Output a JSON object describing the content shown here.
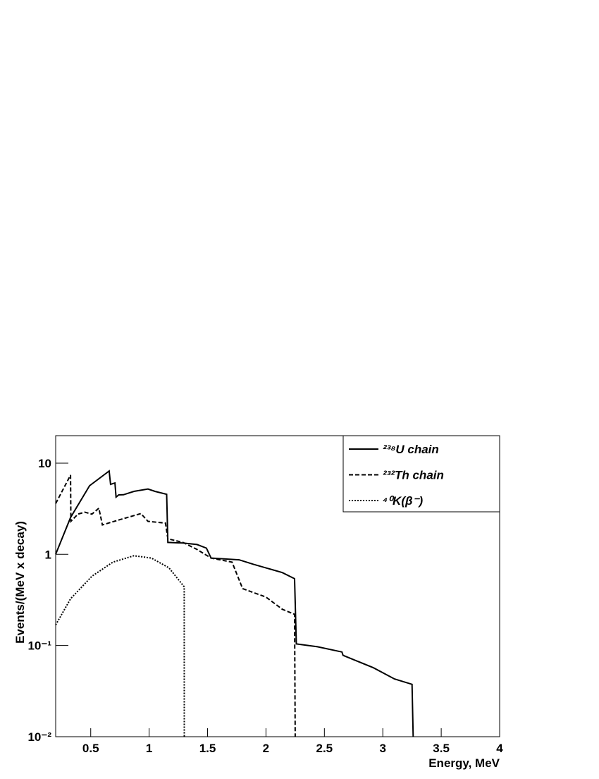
{
  "chart_data": {
    "type": "line",
    "xlabel": "Energy, MeV",
    "ylabel": "Events/(MeV x decay)",
    "xlim": [
      0.2,
      4
    ],
    "ylim": [
      0.01,
      20
    ],
    "ylog": true,
    "xticks": [
      0.5,
      1,
      1.5,
      2,
      2.5,
      3,
      3.5,
      4
    ],
    "yticks": [
      {
        "value": 0.01,
        "label": "10⁻²"
      },
      {
        "value": 0.1,
        "label": "10⁻¹"
      },
      1,
      10
    ],
    "legend": "top-right",
    "series": [
      {
        "name": "²³⁸U chain",
        "color": "#000000",
        "dash": "solid",
        "x": [
          0.2,
          0.327,
          0.49,
          0.658,
          0.67,
          0.707,
          0.717,
          0.74,
          0.78,
          0.87,
          0.99,
          1.05,
          1.15,
          1.16,
          1.29,
          1.41,
          1.49,
          1.53,
          1.77,
          1.89,
          2.14,
          2.245,
          2.26,
          2.44,
          2.65,
          2.66,
          2.92,
          3.1,
          3.25,
          3.26
        ],
        "values": [
          1.0,
          2.53,
          5.65,
          8.2,
          5.85,
          6.06,
          4.24,
          4.48,
          4.5,
          4.9,
          5.2,
          4.9,
          4.55,
          1.35,
          1.33,
          1.28,
          1.17,
          0.91,
          0.87,
          0.78,
          0.63,
          0.54,
          0.104,
          0.097,
          0.085,
          0.078,
          0.057,
          0.043,
          0.0375,
          0.01
        ]
      },
      {
        "name": "²³²Th chain",
        "color": "#000000",
        "dash": "dashed",
        "x": [
          0.2,
          0.327,
          0.33,
          0.39,
          0.45,
          0.51,
          0.57,
          0.6,
          0.75,
          0.93,
          0.99,
          1.14,
          1.16,
          1.29,
          1.41,
          1.53,
          1.71,
          1.8,
          2.0,
          2.14,
          2.245,
          2.25
        ],
        "values": [
          3.6,
          7.4,
          2.3,
          2.76,
          2.9,
          2.76,
          3.2,
          2.1,
          2.4,
          2.8,
          2.3,
          2.2,
          1.48,
          1.35,
          1.13,
          0.91,
          0.82,
          0.42,
          0.34,
          0.25,
          0.22,
          0.01
        ]
      },
      {
        "name": "⁴⁰K(β⁻)",
        "color": "#000000",
        "dash": "dotted",
        "x": [
          0.2,
          0.327,
          0.51,
          0.69,
          0.87,
          1.02,
          1.17,
          1.3,
          1.301
        ],
        "values": [
          0.168,
          0.325,
          0.575,
          0.82,
          0.965,
          0.91,
          0.71,
          0.44,
          0.01
        ]
      }
    ]
  }
}
